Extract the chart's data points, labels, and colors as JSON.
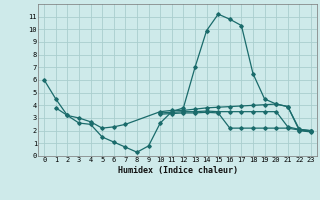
{
  "xlabel": "Humidex (Indice chaleur)",
  "bg_color": "#ceeaea",
  "grid_color": "#aacece",
  "line_color": "#1a6b6b",
  "xlim": [
    -0.5,
    23.5
  ],
  "ylim": [
    0,
    12
  ],
  "xticks": [
    0,
    1,
    2,
    3,
    4,
    5,
    6,
    7,
    8,
    9,
    10,
    11,
    12,
    13,
    14,
    15,
    16,
    17,
    18,
    19,
    20,
    21,
    22,
    23
  ],
  "yticks": [
    0,
    1,
    2,
    3,
    4,
    5,
    6,
    7,
    8,
    9,
    10,
    11
  ],
  "series": [
    [
      6.0,
      4.5,
      3.2,
      2.6,
      2.5,
      1.5,
      1.1,
      0.7,
      0.3,
      0.8,
      2.6,
      3.5,
      3.8,
      7.0,
      9.9,
      11.2,
      10.8,
      10.3,
      6.5,
      4.5,
      4.1,
      3.9,
      2.0,
      1.9
    ],
    [
      null,
      3.8,
      3.2,
      3.0,
      2.7,
      2.2,
      2.3,
      2.5,
      null,
      null,
      3.5,
      3.6,
      3.6,
      3.7,
      3.8,
      3.85,
      3.9,
      3.95,
      4.0,
      4.05,
      4.1,
      3.9,
      2.1,
      2.0
    ],
    [
      null,
      null,
      null,
      null,
      null,
      null,
      null,
      null,
      null,
      null,
      3.4,
      3.45,
      3.5,
      3.5,
      3.55,
      3.5,
      3.5,
      3.5,
      3.5,
      3.5,
      3.5,
      2.3,
      2.1,
      2.0
    ],
    [
      null,
      null,
      null,
      null,
      null,
      null,
      null,
      null,
      null,
      null,
      3.3,
      3.35,
      3.4,
      3.4,
      3.45,
      3.4,
      2.2,
      2.2,
      2.2,
      2.2,
      2.2,
      2.2,
      2.05,
      1.95
    ]
  ]
}
